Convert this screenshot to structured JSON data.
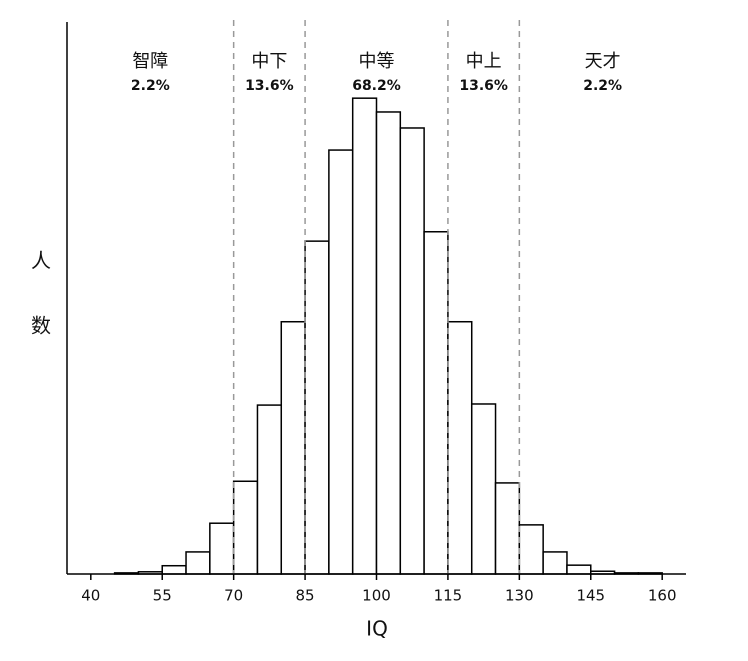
{
  "chart_data": {
    "type": "histogram",
    "x_label": "IQ",
    "y_label": "人数",
    "bins": [
      45,
      50,
      55,
      60,
      65,
      70,
      75,
      80,
      85,
      90,
      95,
      100,
      105,
      110,
      115,
      120,
      125,
      130,
      135,
      140,
      145,
      150,
      155,
      160
    ],
    "counts": [
      0.2,
      0.4,
      1.5,
      4,
      9.2,
      16.8,
      30.6,
      45.7,
      60.3,
      76.8,
      86.2,
      83.7,
      80.8,
      62.0,
      45.7,
      30.8,
      16.5,
      8.9,
      4,
      1.6,
      0.5,
      0.2,
      0.2
    ],
    "color": "#ffffff",
    "edge_color": "#000000",
    "xlim": [
      35,
      165
    ],
    "ylim": [
      0,
      100
    ],
    "xticks": [
      40,
      55,
      70,
      85,
      100,
      115,
      130,
      145,
      160
    ],
    "thresholds": [
      70,
      85,
      115,
      130
    ],
    "regions": [
      {
        "name": "智障",
        "share": "2.2%"
      },
      {
        "name": "中下",
        "share": "13.6%"
      },
      {
        "name": "中等",
        "share": "68.2%"
      },
      {
        "name": "中上",
        "share": "13.6%"
      },
      {
        "name": "天才",
        "share": "2.2%"
      }
    ]
  }
}
